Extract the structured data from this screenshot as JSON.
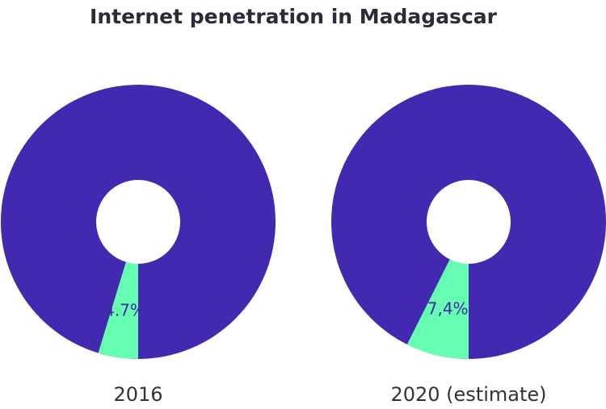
{
  "title": "Internet penetration in Madagascar",
  "chart_data": [
    {
      "type": "pie",
      "title": "2016",
      "values": [
        4.7
      ],
      "value_labels": [
        "4.7%"
      ],
      "color": "#66fcb2",
      "rest_color": "#4328b0",
      "donut": true
    },
    {
      "type": "pie",
      "title": "2020 (estimate)",
      "values": [
        7.4
      ],
      "value_labels": [
        "7,4%"
      ],
      "color": "#66fcb2",
      "rest_color": "#4328b0",
      "donut": true
    }
  ]
}
